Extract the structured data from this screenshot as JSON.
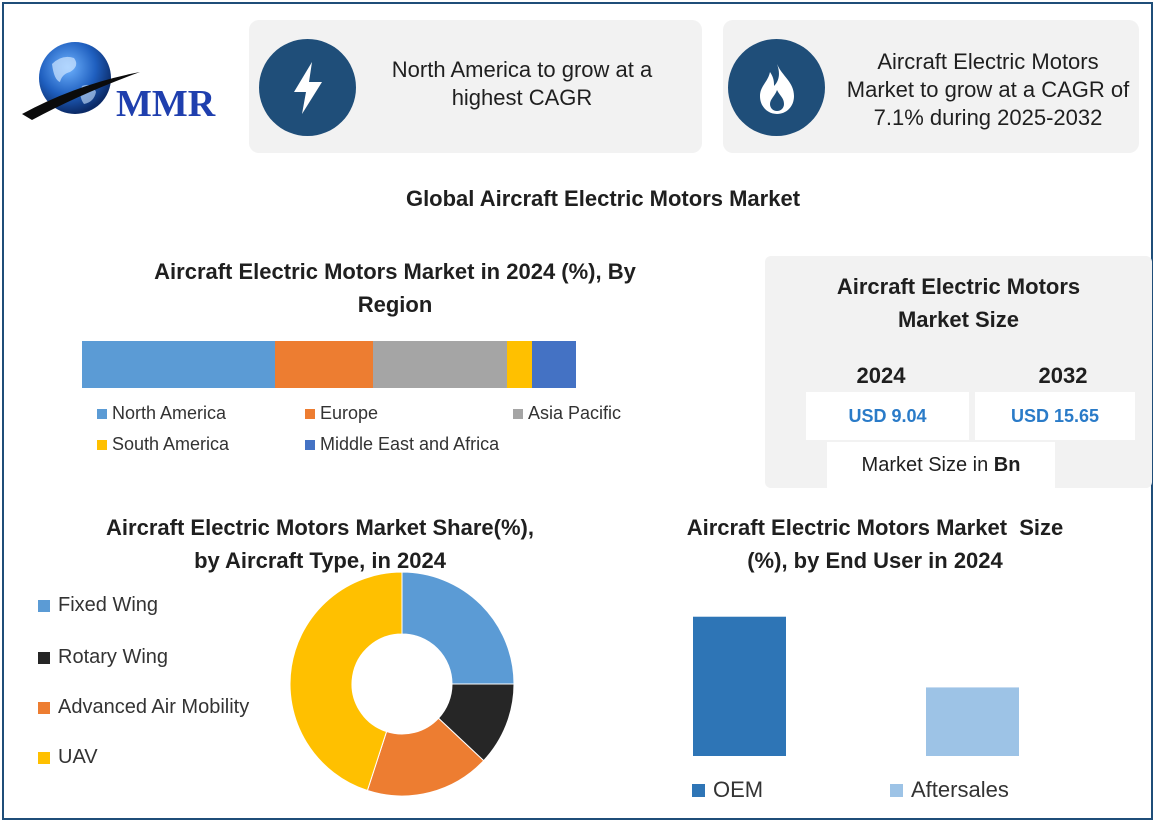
{
  "logo": {
    "text": "MMR"
  },
  "cards": [
    {
      "icon": "lightning-icon",
      "text_lines": [
        "North America to grow at a",
        "highest CAGR"
      ]
    },
    {
      "icon": "flame-icon",
      "text_lines": [
        "Aircraft Electric Motors",
        "Market to grow at a CAGR of",
        "7.1% during 2025-2032"
      ]
    }
  ],
  "main_title": "Global Aircraft Electric Motors Market",
  "market_size": {
    "title_lines": [
      "Aircraft Electric Motors",
      "Market Size"
    ],
    "years": [
      "2024",
      "2032"
    ],
    "values": [
      "USD 9.04",
      "USD 15.65"
    ],
    "unit_prefix": "Market Size in ",
    "unit_bold": "Bn"
  },
  "colors": {
    "dark_blue": "#1f4e79",
    "north_america": "#5b9bd5",
    "europe": "#ed7d31",
    "asia_pacific": "#a5a5a5",
    "south_america": "#ffc000",
    "mea": "#4472c4",
    "fixed_wing": "#5b9bd5",
    "rotary_wing": "#262626",
    "advanced_air_mobility": "#ed7d31",
    "uav": "#ffc000",
    "oem": "#2e75b6",
    "aftersales": "#9dc3e6"
  },
  "chart_data": [
    {
      "type": "bar",
      "orientation": "horizontal-stacked",
      "title_lines": [
        "Aircraft Electric Motors Market in 2024 (%), By",
        "Region"
      ],
      "categories": [
        "North America",
        "Europe",
        "Asia Pacific",
        "South America",
        "Middle East and Africa"
      ],
      "values": [
        39,
        20,
        27,
        5,
        9
      ],
      "unit": "%",
      "legend": "bottom"
    },
    {
      "type": "pie",
      "donut": true,
      "title_lines": [
        "Aircraft Electric Motors Market Share(%),",
        "by Aircraft Type, in 2024"
      ],
      "categories": [
        "Fixed Wing",
        "Rotary Wing",
        "Advanced Air Mobility",
        "UAV"
      ],
      "values": [
        25,
        12,
        18,
        45
      ],
      "legend": "left"
    },
    {
      "type": "bar",
      "title_lines": [
        "Aircraft Electric Motors Market  Size",
        "(%), by End User in 2024"
      ],
      "categories": [
        "OEM",
        "Aftersales"
      ],
      "values": [
        65,
        32
      ],
      "ylim": [
        0,
        70
      ],
      "legend": "bottom"
    }
  ]
}
